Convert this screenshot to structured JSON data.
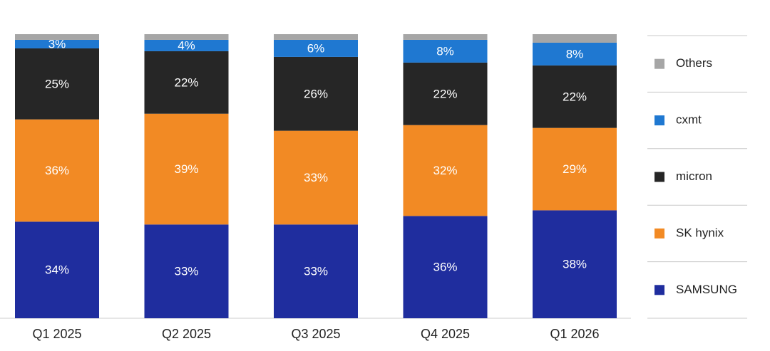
{
  "chart_data": {
    "type": "stacked_bar",
    "categories": [
      "Q1 2025",
      "Q2 2025",
      "Q3 2025",
      "Q4 2025",
      "Q1 2026"
    ],
    "ylim": [
      0,
      100
    ],
    "series": [
      {
        "name": "SAMSUNG",
        "color": "#1f2d9e",
        "values": [
          34,
          33,
          33,
          36,
          38
        ],
        "value_labels": [
          "34%",
          "33%",
          "33%",
          "36%",
          "38%"
        ]
      },
      {
        "name": "SK hynix",
        "color": "#f28a24",
        "values": [
          36,
          39,
          33,
          32,
          29
        ],
        "value_labels": [
          "36%",
          "39%",
          "33%",
          "32%",
          "29%"
        ]
      },
      {
        "name": "micron",
        "color": "#262626",
        "values": [
          25,
          22,
          26,
          22,
          22
        ],
        "value_labels": [
          "25%",
          "22%",
          "26%",
          "22%",
          "22%"
        ]
      },
      {
        "name": "cxmt",
        "color": "#1f78d1",
        "values": [
          3,
          4,
          6,
          8,
          8
        ],
        "value_labels": [
          "3%",
          "4%",
          "6%",
          "8%",
          "8%"
        ]
      },
      {
        "name": "Others",
        "color": "#a6a6a6",
        "values": [
          2,
          2,
          2,
          2,
          3
        ]
      }
    ]
  }
}
